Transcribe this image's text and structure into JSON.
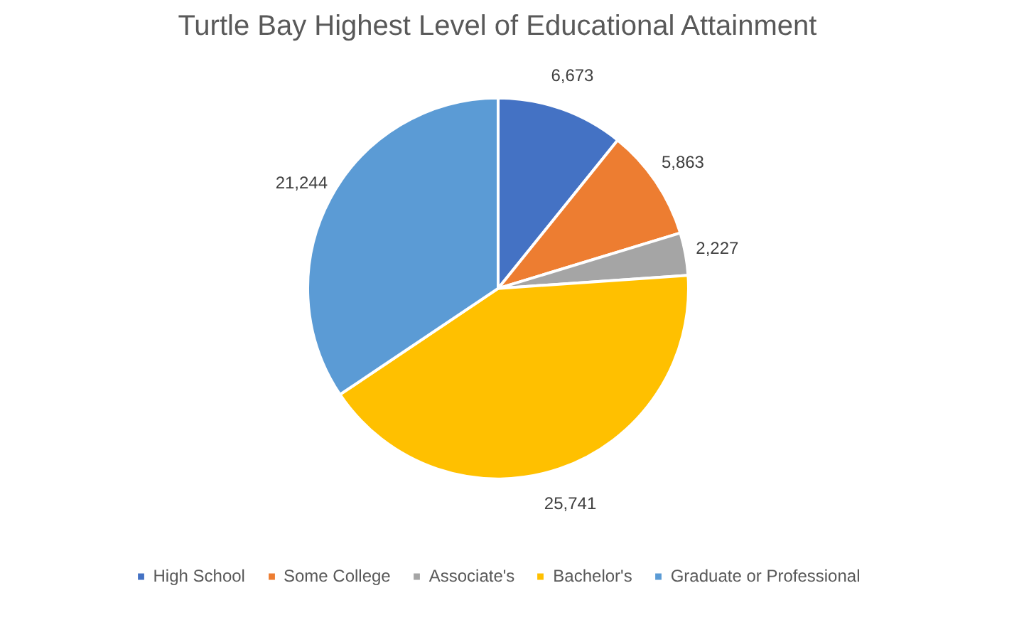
{
  "chart_data": {
    "type": "pie",
    "title": "Turtle Bay Highest Level of Educational Attainment",
    "categories": [
      "High School",
      "Some College",
      "Associate's",
      "Bachelor's",
      "Graduate or Professional"
    ],
    "values": [
      6673,
      5863,
      2227,
      25741,
      21244
    ],
    "colors": [
      "#4472c4",
      "#ed7d31",
      "#a5a5a5",
      "#ffc000",
      "#5b9bd5"
    ],
    "value_labels": [
      "6,673",
      "5,863",
      "2,227",
      "25,741",
      "21,244"
    ],
    "legend": "bottom"
  }
}
